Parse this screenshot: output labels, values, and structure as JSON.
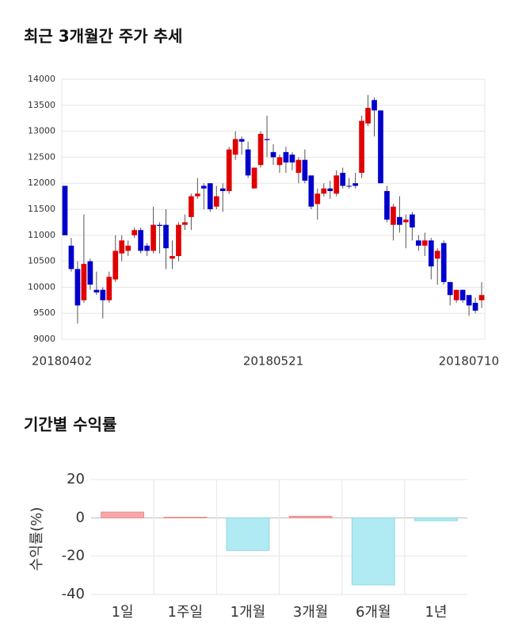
{
  "chart_data": [
    {
      "type": "candlestick",
      "title": "최근 3개월간 주가 추세",
      "categories": [
        "20180402",
        null,
        null,
        null,
        null,
        null,
        null,
        null,
        null,
        null,
        null,
        null,
        null,
        null,
        null,
        null,
        null,
        null,
        null,
        null,
        null,
        null,
        null,
        null,
        null,
        null,
        null,
        null,
        null,
        null,
        null,
        null,
        null,
        "20180521",
        null,
        null,
        null,
        null,
        null,
        null,
        null,
        null,
        null,
        null,
        null,
        null,
        null,
        null,
        null,
        null,
        null,
        null,
        null,
        null,
        null,
        null,
        null,
        null,
        null,
        null,
        null,
        null,
        null,
        null,
        null,
        null,
        "20180710"
      ],
      "open": [
        11950,
        10800,
        10350,
        9750,
        10500,
        9950,
        9950,
        9750,
        10150,
        10650,
        10700,
        11000,
        11100,
        10800,
        10700,
        11200,
        11200,
        10550,
        10600,
        11200,
        11350,
        11750,
        11950,
        12000,
        11550,
        11900,
        11850,
        12550,
        12850,
        12650,
        11900,
        12350,
        12850,
        12600,
        12350,
        12600,
        12550,
        12200,
        12450,
        12150,
        11600,
        11800,
        11900,
        11800,
        12200,
        11950,
        12000,
        12200,
        13150,
        13600,
        13400,
        11850,
        11200,
        11350,
        11250,
        11400,
        10900,
        10800,
        10900,
        10550,
        10850,
        10100,
        9750,
        9950,
        9850,
        9700,
        9750
      ],
      "high": [
        11950,
        10950,
        10500,
        11400,
        10550,
        10300,
        10000,
        10300,
        11000,
        11000,
        10900,
        11150,
        11150,
        10850,
        11550,
        11250,
        11500,
        10900,
        11250,
        11400,
        11800,
        12100,
        12000,
        12000,
        11950,
        12000,
        12700,
        13000,
        12900,
        12800,
        12300,
        13000,
        13300,
        12750,
        12550,
        12700,
        12600,
        12500,
        12650,
        12150,
        11900,
        12000,
        12050,
        12250,
        12300,
        12100,
        12200,
        13300,
        13700,
        13650,
        13400,
        11950,
        11600,
        11750,
        11400,
        11450,
        11000,
        11050,
        10950,
        10750,
        10900,
        10100,
        9950,
        9950,
        9850,
        9800,
        10100
      ],
      "low": [
        11000,
        10300,
        9300,
        9700,
        9950,
        9850,
        9400,
        9700,
        10100,
        10500,
        10600,
        10950,
        10650,
        10600,
        10650,
        10650,
        10350,
        10350,
        10500,
        11100,
        11100,
        11700,
        11500,
        11450,
        11500,
        11450,
        11800,
        12450,
        12550,
        12100,
        11900,
        12300,
        12500,
        12350,
        12200,
        12200,
        12250,
        12000,
        12000,
        11500,
        11300,
        11750,
        11700,
        11750,
        11900,
        11900,
        11900,
        12100,
        13100,
        12900,
        12000,
        11250,
        10900,
        11050,
        10750,
        10900,
        10700,
        10600,
        10150,
        10050,
        10050,
        9650,
        9700,
        9700,
        9450,
        9500,
        9600
      ],
      "close": [
        11000,
        10350,
        9650,
        10450,
        10050,
        9900,
        9750,
        10200,
        10700,
        10900,
        10800,
        11100,
        10700,
        10700,
        11200,
        11180,
        10750,
        10600,
        11200,
        11250,
        11750,
        11800,
        11900,
        11500,
        11750,
        11850,
        12650,
        12850,
        12800,
        12150,
        12300,
        12950,
        12830,
        12500,
        12500,
        12400,
        12400,
        12450,
        12050,
        11550,
        11800,
        11900,
        11850,
        12150,
        11950,
        11940,
        11950,
        13200,
        13450,
        13400,
        12000,
        11300,
        11550,
        11200,
        11300,
        11150,
        10800,
        10900,
        10400,
        10700,
        10100,
        9850,
        9950,
        9750,
        9650,
        9550,
        9850
      ],
      "up_color": "#e00000",
      "down_color": "#0000cc",
      "ylim": [
        9000,
        14000
      ],
      "yticks": [
        9000,
        9500,
        10000,
        10500,
        11000,
        11500,
        12000,
        12500,
        13000,
        13500,
        14000
      ],
      "grid": true
    },
    {
      "type": "bar",
      "title": "기간별 수익률",
      "ylabel": "수익률(%)",
      "categories": [
        "1일",
        "1주일",
        "1개월",
        "3개월",
        "6개월",
        "1년"
      ],
      "values": [
        3,
        0.3,
        -17,
        0.8,
        -35,
        -1.5
      ],
      "colors": [
        "#f7a8aa",
        "#f7a8aa",
        "#b0ebf3",
        "#f7a8aa",
        "#b0ebf3",
        "#b0ebf3"
      ],
      "ylim": [
        -40,
        20
      ],
      "yticks": [
        -40,
        -20,
        0,
        20
      ],
      "grid": true
    }
  ]
}
